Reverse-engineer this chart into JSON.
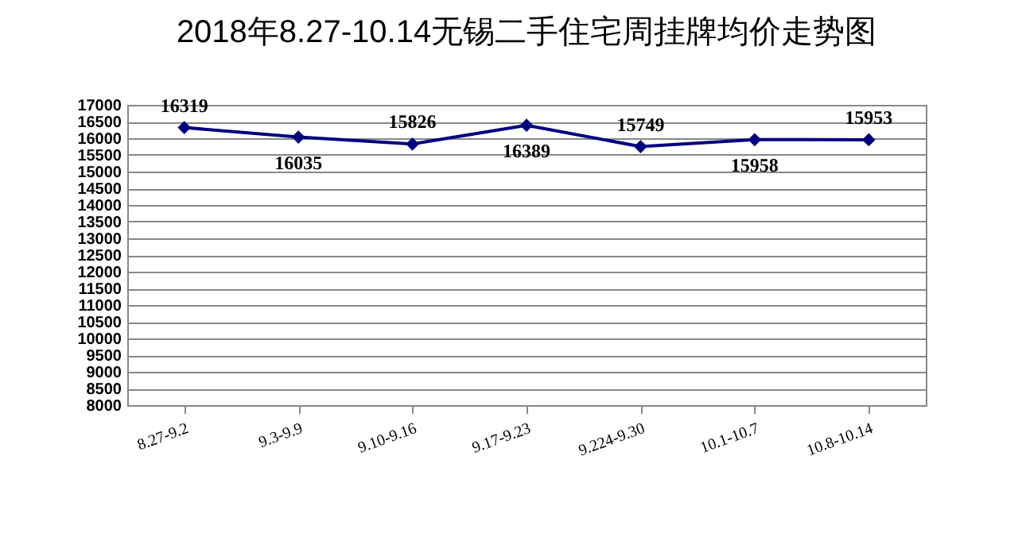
{
  "chart_data": {
    "type": "line",
    "title": "2018年8.27-10.14无锡二手住宅周挂牌均价走势图",
    "categories": [
      "8.27-9.2",
      "9.3-9.9",
      "9.10-9.16",
      "9.17-9.23",
      "9.224-9.30",
      "10.1-10.7",
      "10.8-10.14"
    ],
    "series": [
      {
        "color": "#000080",
        "values": [
          16319,
          16035,
          15826,
          16389,
          15749,
          15958,
          15953
        ]
      }
    ],
    "ylim": [
      8000,
      17000
    ],
    "yticks": [
      8000,
      8500,
      9000,
      9500,
      10000,
      10500,
      11000,
      11500,
      12000,
      12500,
      13000,
      13500,
      14000,
      14500,
      15000,
      15500,
      16000,
      16500,
      17000
    ],
    "grid": "y",
    "marker": "diamond",
    "data_labels": true
  }
}
